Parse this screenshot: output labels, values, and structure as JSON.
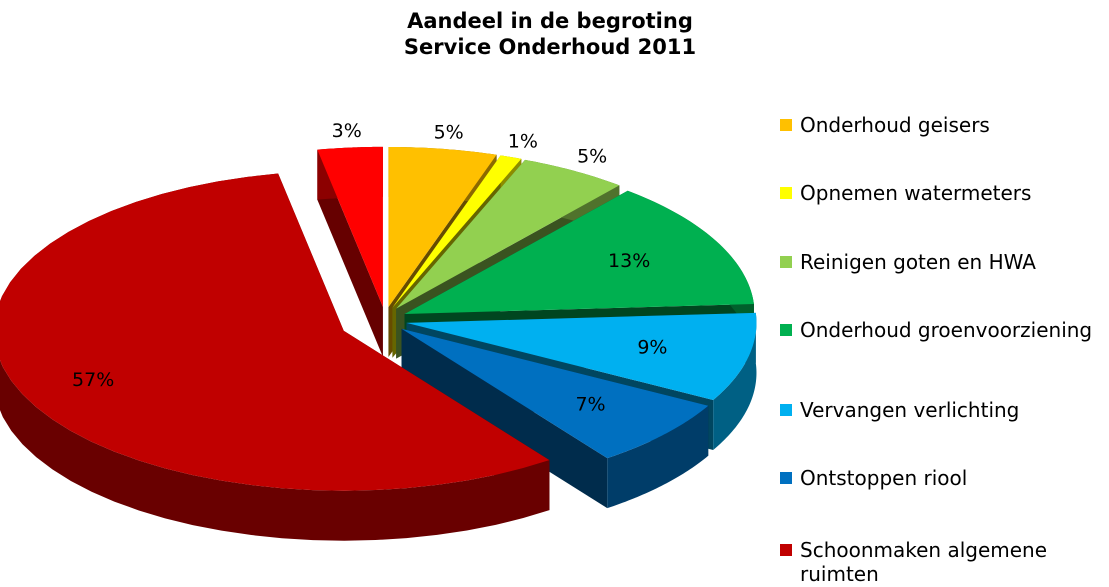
{
  "chart_data": {
    "type": "pie3d",
    "title": "Aandeel in de begroting\nService Onderhoud 2011",
    "categories": [
      "Onderhoud geisers",
      "Opnemen watermeters",
      "Reinigen goten en HWA",
      "Onderhoud groenvoorziening",
      "Vervangen verlichting",
      "Ontstoppen riool",
      "Schoonmaken algemene ruimten",
      null
    ],
    "values": [
      5,
      1,
      5,
      13,
      9,
      7,
      57,
      3
    ],
    "value_labels": [
      "5%",
      "1%",
      "5%",
      "13%",
      "9%",
      "7%",
      "57%",
      "3%"
    ],
    "colors": [
      "#ffc000",
      "#ffff00",
      "#92d050",
      "#00b050",
      "#00b0f0",
      "#0070c0",
      "#c00000",
      "#ff0000"
    ],
    "legend": "right"
  }
}
